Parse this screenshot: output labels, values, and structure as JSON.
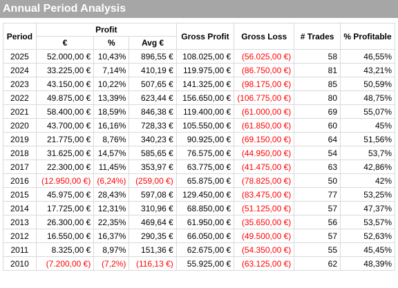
{
  "title": "Annual Period Analysis",
  "headers": {
    "period": "Period",
    "profit": "Profit",
    "euro": "€",
    "pct": "%",
    "avg": "Avg €",
    "gross_profit": "Gross Profit",
    "gross_loss": "Gross Loss",
    "trades": "# Trades",
    "pct_profitable": "% Profitable"
  },
  "colors": {
    "title_bg": "#a6a6a6",
    "negative": "#ff0000",
    "grid": "#d9d9d9"
  },
  "rows": [
    {
      "period": "2025",
      "profit": "52.000,00 €",
      "pct": "10,43%",
      "avg": "896,55 €",
      "gross_profit": "108.025,00 €",
      "gross_loss": "(56.025,00 €)",
      "trades": "58",
      "pct_profitable": "46,55%",
      "neg": false
    },
    {
      "period": "2024",
      "profit": "33.225,00 €",
      "pct": "7,14%",
      "avg": "410,19 €",
      "gross_profit": "119.975,00 €",
      "gross_loss": "(86.750,00 €)",
      "trades": "81",
      "pct_profitable": "43,21%",
      "neg": false
    },
    {
      "period": "2023",
      "profit": "43.150,00 €",
      "pct": "10,22%",
      "avg": "507,65 €",
      "gross_profit": "141.325,00 €",
      "gross_loss": "(98.175,00 €)",
      "trades": "85",
      "pct_profitable": "50,59%",
      "neg": false
    },
    {
      "period": "2022",
      "profit": "49.875,00 €",
      "pct": "13,39%",
      "avg": "623,44 €",
      "gross_profit": "156.650,00 €",
      "gross_loss": "(106.775,00 €)",
      "trades": "80",
      "pct_profitable": "48,75%",
      "neg": false
    },
    {
      "period": "2021",
      "profit": "58.400,00 €",
      "pct": "18,59%",
      "avg": "846,38 €",
      "gross_profit": "119.400,00 €",
      "gross_loss": "(61.000,00 €)",
      "trades": "69",
      "pct_profitable": "55,07%",
      "neg": false
    },
    {
      "period": "2020",
      "profit": "43.700,00 €",
      "pct": "16,16%",
      "avg": "728,33 €",
      "gross_profit": "105.550,00 €",
      "gross_loss": "(61.850,00 €)",
      "trades": "60",
      "pct_profitable": "45%",
      "neg": false
    },
    {
      "period": "2019",
      "profit": "21.775,00 €",
      "pct": "8,76%",
      "avg": "340,23 €",
      "gross_profit": "90.925,00 €",
      "gross_loss": "(69.150,00 €)",
      "trades": "64",
      "pct_profitable": "51,56%",
      "neg": false
    },
    {
      "period": "2018",
      "profit": "31.625,00 €",
      "pct": "14,57%",
      "avg": "585,65 €",
      "gross_profit": "76.575,00 €",
      "gross_loss": "(44.950,00 €)",
      "trades": "54",
      "pct_profitable": "53,7%",
      "neg": false
    },
    {
      "period": "2017",
      "profit": "22.300,00 €",
      "pct": "11,45%",
      "avg": "353,97 €",
      "gross_profit": "63.775,00 €",
      "gross_loss": "(41.475,00 €)",
      "trades": "63",
      "pct_profitable": "42,86%",
      "neg": false
    },
    {
      "period": "2016",
      "profit": "(12.950,00 €)",
      "pct": "(6,24%)",
      "avg": "(259,00 €)",
      "gross_profit": "65.875,00 €",
      "gross_loss": "(78.825,00 €)",
      "trades": "50",
      "pct_profitable": "42%",
      "neg": true
    },
    {
      "period": "2015",
      "profit": "45.975,00 €",
      "pct": "28,43%",
      "avg": "597,08 €",
      "gross_profit": "129.450,00 €",
      "gross_loss": "(83.475,00 €)",
      "trades": "77",
      "pct_profitable": "53,25%",
      "neg": false
    },
    {
      "period": "2014",
      "profit": "17.725,00 €",
      "pct": "12,31%",
      "avg": "310,96 €",
      "gross_profit": "68.850,00 €",
      "gross_loss": "(51.125,00 €)",
      "trades": "57",
      "pct_profitable": "47,37%",
      "neg": false
    },
    {
      "period": "2013",
      "profit": "26.300,00 €",
      "pct": "22,35%",
      "avg": "469,64 €",
      "gross_profit": "61.950,00 €",
      "gross_loss": "(35.650,00 €)",
      "trades": "56",
      "pct_profitable": "53,57%",
      "neg": false
    },
    {
      "period": "2012",
      "profit": "16.550,00 €",
      "pct": "16,37%",
      "avg": "290,35 €",
      "gross_profit": "66.050,00 €",
      "gross_loss": "(49.500,00 €)",
      "trades": "57",
      "pct_profitable": "52,63%",
      "neg": false
    },
    {
      "period": "2011",
      "profit": "8.325,00 €",
      "pct": "8,97%",
      "avg": "151,36 €",
      "gross_profit": "62.675,00 €",
      "gross_loss": "(54.350,00 €)",
      "trades": "55",
      "pct_profitable": "45,45%",
      "neg": false
    },
    {
      "period": "2010",
      "profit": "(7.200,00 €)",
      "pct": "(7,2%)",
      "avg": "(116,13 €)",
      "gross_profit": "55.925,00 €",
      "gross_loss": "(63.125,00 €)",
      "trades": "62",
      "pct_profitable": "48,39%",
      "neg": true
    }
  ]
}
